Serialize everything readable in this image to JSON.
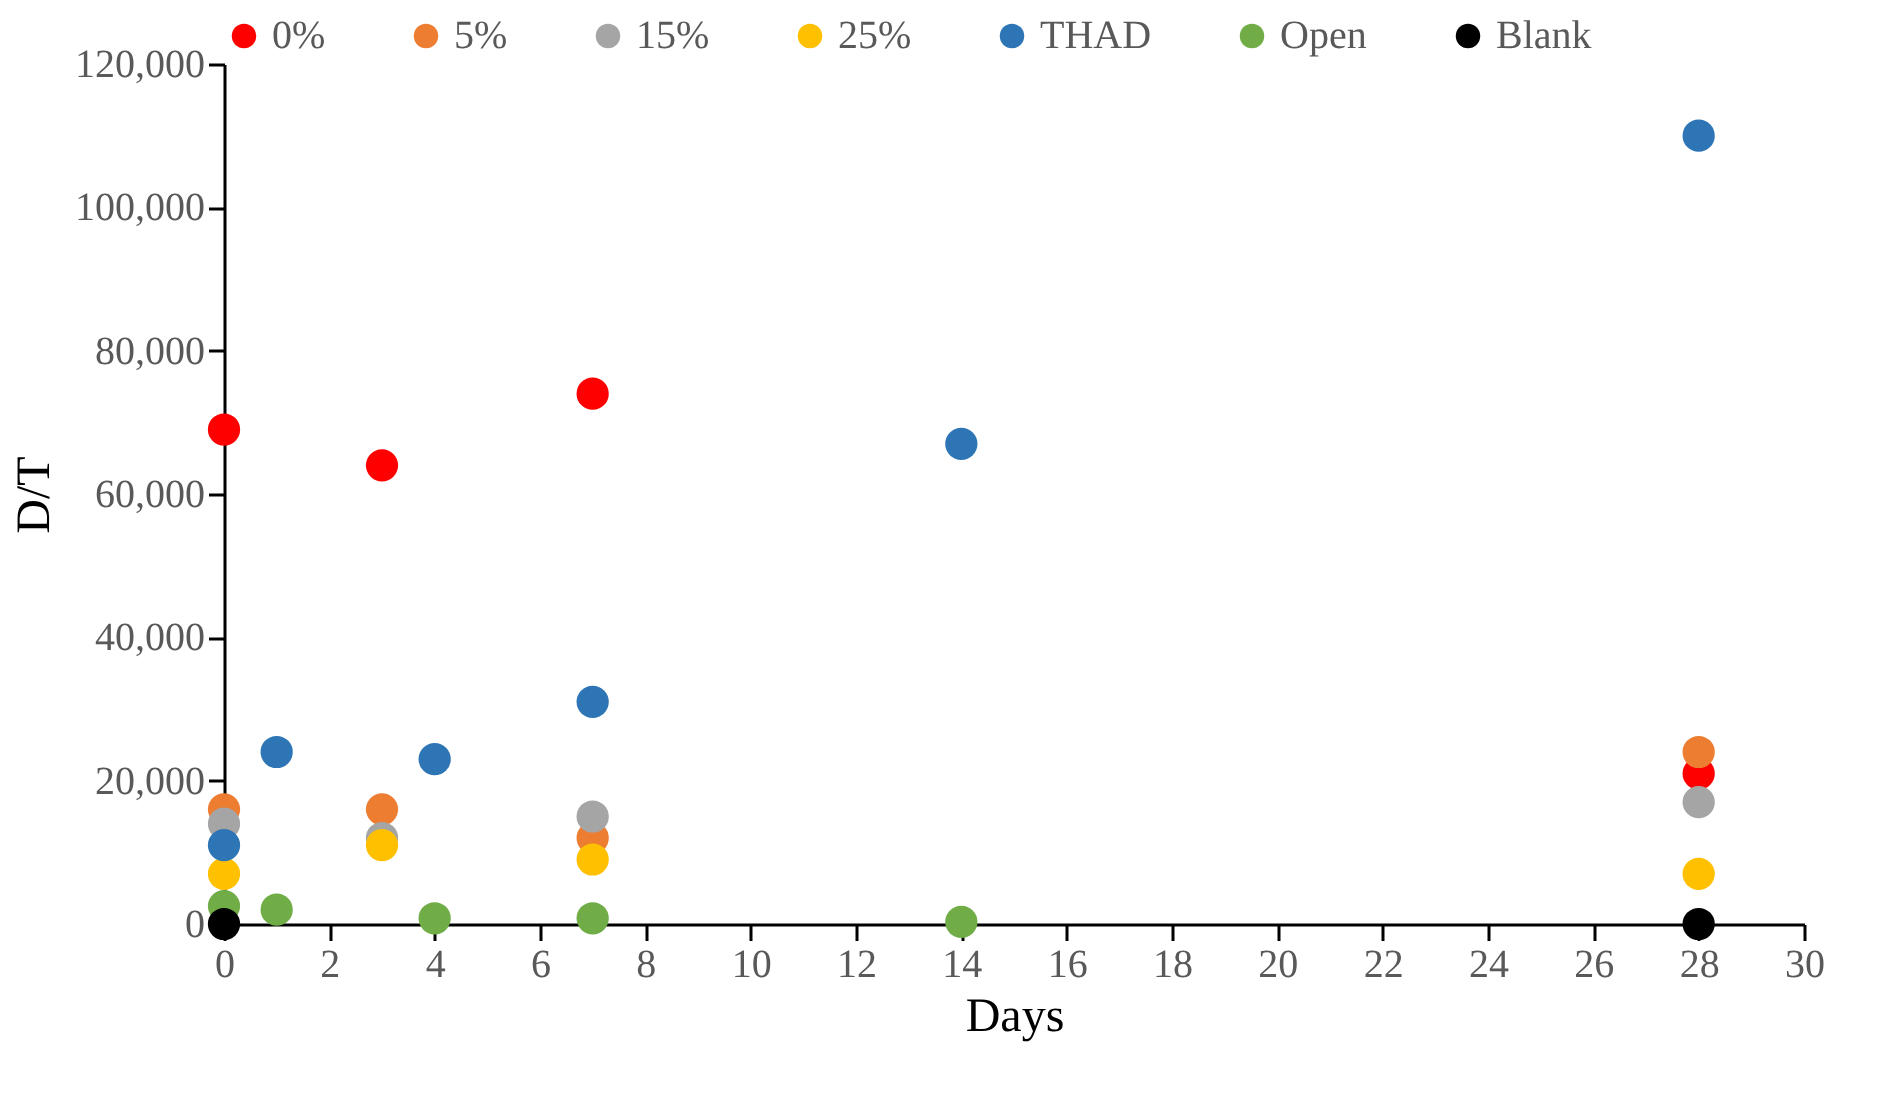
{
  "chart_data": {
    "type": "scatter",
    "xlabel": "Days",
    "ylabel": "D/T",
    "marker": "circle",
    "legend": "top",
    "grid": false,
    "xlim": [
      0,
      30
    ],
    "xticks": [
      0,
      2,
      4,
      6,
      8,
      10,
      12,
      14,
      16,
      18,
      20,
      22,
      24,
      26,
      28,
      30
    ],
    "ylim": [
      0,
      120000
    ],
    "yticks": [
      {
        "value": 0,
        "label": "0"
      },
      {
        "value": 20000,
        "label": "20,000"
      },
      {
        "value": 40000,
        "label": "40,000"
      },
      {
        "value": 60000,
        "label": "60,000"
      },
      {
        "value": 80000,
        "label": "80,000"
      },
      {
        "value": 100000,
        "label": "100,000"
      },
      {
        "value": 120000,
        "label": "120,000"
      }
    ],
    "series": [
      {
        "name": "0%",
        "color": "#ff0000",
        "x": [
          0,
          3,
          7,
          28
        ],
        "values": [
          69000,
          64000,
          74000,
          21000
        ]
      },
      {
        "name": "5%",
        "color": "#ed7d31",
        "x": [
          0,
          3,
          7,
          28
        ],
        "values": [
          16000,
          16000,
          12000,
          24000
        ]
      },
      {
        "name": "15%",
        "color": "#a5a5a5",
        "x": [
          0,
          3,
          7,
          28
        ],
        "values": [
          14000,
          12000,
          15000,
          17000
        ]
      },
      {
        "name": "25%",
        "color": "#ffc000",
        "x": [
          0,
          3,
          7,
          28
        ],
        "values": [
          7000,
          11000,
          9000,
          7000
        ]
      },
      {
        "name": "THAD",
        "color": "#2e75b6",
        "x": [
          0,
          1,
          4,
          7,
          14,
          28
        ],
        "values": [
          11000,
          24000,
          23000,
          31000,
          67000,
          110000
        ]
      },
      {
        "name": "Open",
        "color": "#70ad47",
        "x": [
          0,
          1,
          4,
          7,
          14
        ],
        "values": [
          2500,
          2000,
          800,
          800,
          300
        ]
      },
      {
        "name": "Blank",
        "color": "#000000",
        "x": [
          0,
          28
        ],
        "values": [
          0,
          0
        ]
      }
    ]
  }
}
